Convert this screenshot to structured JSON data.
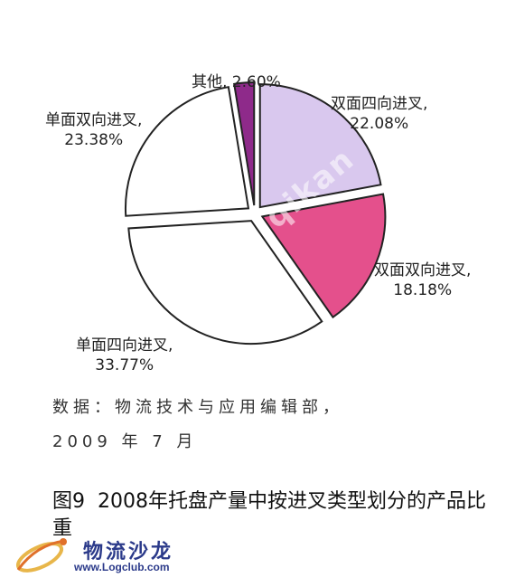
{
  "chart_data": {
    "type": "pie",
    "title": "",
    "unit": "%",
    "slices": [
      {
        "label": "其他",
        "value": 2.6,
        "display": "其他, 2.60%",
        "color": "#8e2a8a"
      },
      {
        "label": "双面四向进叉",
        "value": 22.08,
        "display_line1": "双面四向进叉,",
        "display_line2": "22.08%",
        "color": "#d9c8ee"
      },
      {
        "label": "双面双向进叉",
        "value": 18.18,
        "display_line1": "双面双向进叉,",
        "display_line2": "18.18%",
        "color": "#e4508c"
      },
      {
        "label": "单面四向进叉",
        "value": 33.77,
        "display_line1": "单面四向进叉,",
        "display_line2": "33.77%",
        "color": "#ffffff"
      },
      {
        "label": "单面双向进叉",
        "value": 23.38,
        "display_line1": "单面双向进叉,",
        "display_line2": "23.38%",
        "color": "#ffffff"
      }
    ]
  },
  "source_note": {
    "line1": "数据：物流技术与应用编辑部，",
    "line2": "2009 年 7 月"
  },
  "caption": {
    "number": "图9",
    "text": "2008年托盘产量中按进叉类型划分的产品比重"
  },
  "watermark": {
    "text": "qikan",
    "logo_name": "物流沙龙",
    "logo_url": "www.Logclub.com"
  }
}
